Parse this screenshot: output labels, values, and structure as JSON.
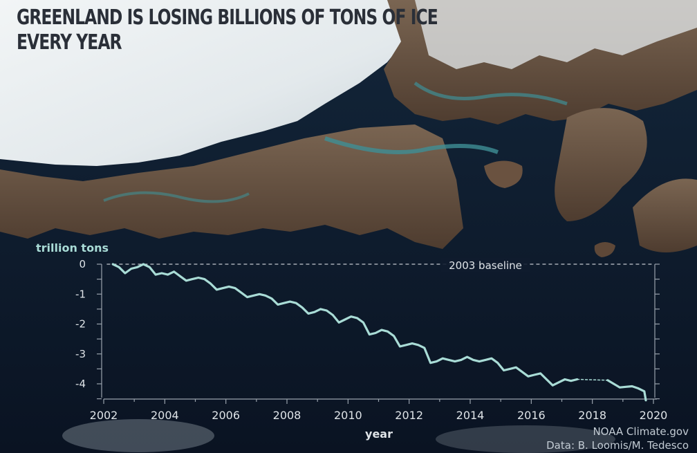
{
  "title": {
    "line1": "GREENLAND IS LOSING BILLIONS OF TONS OF ICE",
    "line2": "EVERY YEAR"
  },
  "credit": {
    "line1": "NOAA Climate.gov",
    "line2": "Data: B. Loomis/M. Tedesco"
  },
  "colors": {
    "line": "#a9dcd6",
    "baseline": "#d9dee3",
    "ocean": "#0b1525",
    "ice": "#e9eef1",
    "land": "#6a5240",
    "inlet": "#3f8f95"
  },
  "chart_data": {
    "type": "line",
    "title": "",
    "xlabel": "year",
    "ylabel": "trillion tons",
    "xlim": [
      2002,
      2020
    ],
    "ylim": [
      -4.5,
      0
    ],
    "x_ticks": [
      2002,
      2004,
      2006,
      2008,
      2010,
      2012,
      2014,
      2016,
      2018,
      2020
    ],
    "y_ticks": [
      0,
      -1,
      -2,
      -3,
      -4
    ],
    "baseline": {
      "value": 0,
      "label": "2003 baseline"
    },
    "series": [
      {
        "x": [
          2002.3,
          2002.5,
          2002.7,
          2002.9,
          2003.1,
          2003.3,
          2003.5,
          2003.7,
          2003.9,
          2004.1,
          2004.3,
          2004.5,
          2004.7,
          2004.9,
          2005.1,
          2005.3,
          2005.5,
          2005.7,
          2005.9,
          2006.1,
          2006.3,
          2006.5,
          2006.7,
          2006.9,
          2007.1,
          2007.3,
          2007.5,
          2007.7,
          2007.9,
          2008.1,
          2008.3,
          2008.5,
          2008.7,
          2008.9,
          2009.1,
          2009.3,
          2009.5,
          2009.7,
          2009.9,
          2010.1,
          2010.3,
          2010.5,
          2010.7,
          2010.9,
          2011.1,
          2011.3,
          2011.5,
          2011.7,
          2011.9,
          2012.1,
          2012.3,
          2012.5,
          2012.7,
          2012.9,
          2013.1,
          2013.3,
          2013.5,
          2013.7,
          2013.9,
          2014.1,
          2014.3,
          2014.5,
          2014.7,
          2014.9,
          2015.1,
          2015.3,
          2015.5,
          2015.7,
          2015.9,
          2016.1,
          2016.3,
          2016.5,
          2016.7,
          2016.9,
          2017.1,
          2017.3,
          2017.5
        ],
        "y": [
          0.0,
          -0.1,
          -0.3,
          -0.15,
          -0.1,
          0.0,
          -0.1,
          -0.35,
          -0.3,
          -0.35,
          -0.25,
          -0.4,
          -0.55,
          -0.5,
          -0.45,
          -0.5,
          -0.65,
          -0.85,
          -0.8,
          -0.75,
          -0.8,
          -0.95,
          -1.1,
          -1.05,
          -1.0,
          -1.05,
          -1.15,
          -1.35,
          -1.3,
          -1.25,
          -1.3,
          -1.45,
          -1.65,
          -1.6,
          -1.5,
          -1.55,
          -1.7,
          -1.95,
          -1.85,
          -1.75,
          -1.8,
          -1.95,
          -2.35,
          -2.3,
          -2.2,
          -2.25,
          -2.4,
          -2.75,
          -2.7,
          -2.65,
          -2.7,
          -2.8,
          -3.3,
          -3.25,
          -3.15,
          -3.2,
          -3.25,
          -3.2,
          -3.1,
          -3.2,
          -3.25,
          -3.2,
          -3.15,
          -3.3,
          -3.55,
          -3.5,
          -3.45,
          -3.6,
          -3.75,
          -3.7,
          -3.65,
          -3.85,
          -4.05,
          -3.95,
          -3.85,
          -3.9,
          -3.85
        ]
      },
      {
        "x": [
          2017.5,
          2018.5
        ],
        "y": [
          -3.85,
          -3.88
        ],
        "style": "dotted"
      },
      {
        "x": [
          2018.5,
          2018.7,
          2018.9,
          2019.1,
          2019.3,
          2019.5,
          2019.7,
          2019.75
        ],
        "y": [
          -3.88,
          -4.0,
          -4.12,
          -4.1,
          -4.08,
          -4.15,
          -4.25,
          -4.55
        ]
      }
    ]
  }
}
